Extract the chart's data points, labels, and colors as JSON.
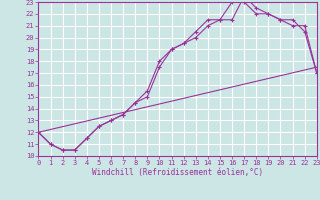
{
  "xlabel": "Windchill (Refroidissement éolien,°C)",
  "ylabel": "",
  "xlim": [
    0,
    23
  ],
  "ylim": [
    10,
    23
  ],
  "xticks": [
    0,
    1,
    2,
    3,
    4,
    5,
    6,
    7,
    8,
    9,
    10,
    11,
    12,
    13,
    14,
    15,
    16,
    17,
    18,
    19,
    20,
    21,
    22,
    23
  ],
  "yticks": [
    10,
    11,
    12,
    13,
    14,
    15,
    16,
    17,
    18,
    19,
    20,
    21,
    22,
    23
  ],
  "bg_color": "#cce5e5",
  "line_color": "#993399",
  "grid_color": "#ffffff",
  "line1_x": [
    0,
    1,
    2,
    3,
    4,
    5,
    6,
    7,
    8,
    9,
    10,
    11,
    12,
    13,
    14,
    15,
    16,
    17,
    18,
    19,
    20,
    21,
    22,
    23
  ],
  "line1_y": [
    12,
    11,
    10.5,
    10.5,
    11.5,
    12.5,
    13,
    13.5,
    14.5,
    15,
    17.5,
    19,
    19.5,
    20.5,
    21.5,
    21.5,
    23,
    23,
    22,
    22,
    21.5,
    21.5,
    20.5,
    17
  ],
  "line2_x": [
    0,
    1,
    2,
    3,
    4,
    5,
    6,
    7,
    8,
    9,
    10,
    11,
    12,
    13,
    14,
    15,
    16,
    17,
    18,
    19,
    20,
    21,
    22,
    23
  ],
  "line2_y": [
    12,
    11,
    10.5,
    10.5,
    11.5,
    12.5,
    13,
    13.5,
    14.5,
    15.5,
    18,
    19,
    19.5,
    20,
    21,
    21.5,
    21.5,
    23.5,
    22.5,
    22,
    21.5,
    21,
    21,
    17
  ],
  "line3_x": [
    0,
    23
  ],
  "line3_y": [
    12,
    17.5
  ]
}
